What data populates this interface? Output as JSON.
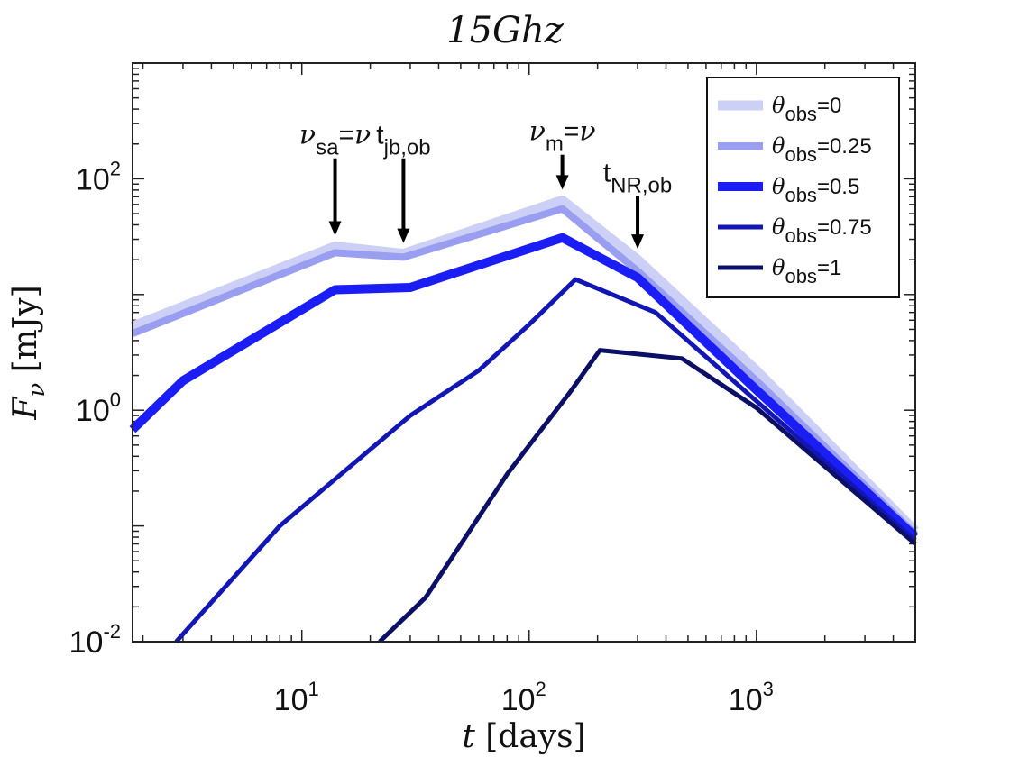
{
  "chart_data": {
    "type": "line",
    "title": "15Ghz",
    "xlabel": "t [days]",
    "ylabel": "F_ν [mJy]",
    "xscale": "log",
    "yscale": "log",
    "xlim": [
      1.8,
      5000
    ],
    "ylim": [
      0.01,
      1000
    ],
    "x_ticks": [
      {
        "value": 10,
        "base": "10",
        "exp": "1"
      },
      {
        "value": 100,
        "base": "10",
        "exp": "2"
      },
      {
        "value": 1000,
        "base": "10",
        "exp": "3"
      }
    ],
    "y_ticks": [
      {
        "value": 0.01,
        "base": "10",
        "exp": "-2"
      },
      {
        "value": 1,
        "base": "10",
        "exp": "0"
      },
      {
        "value": 100,
        "base": "10",
        "exp": "2"
      }
    ],
    "legend": {
      "position": "top-right",
      "symbol": "θ",
      "subscript": "obs",
      "entries": [
        "=0",
        "=0.25",
        "=0.5",
        "=0.75",
        "=1"
      ]
    },
    "series": [
      {
        "name": "θ_obs=0",
        "color": "#cdd0f6",
        "points": [
          [
            1.8,
            5.3
          ],
          [
            14,
            26
          ],
          [
            28,
            22.5
          ],
          [
            140,
            65
          ],
          [
            300,
            20
          ],
          [
            1000,
            2.2
          ],
          [
            5000,
            0.09
          ]
        ]
      },
      {
        "name": "θ_obs=0.25",
        "color": "#9a9ef0",
        "points": [
          [
            1.8,
            4.6
          ],
          [
            14,
            23
          ],
          [
            28,
            21
          ],
          [
            140,
            55
          ],
          [
            300,
            16
          ],
          [
            1000,
            1.8
          ],
          [
            5000,
            0.085
          ]
        ]
      },
      {
        "name": "θ_obs=0.5",
        "color": "#1a1ef5",
        "points": [
          [
            1.8,
            0.68
          ],
          [
            3,
            1.8
          ],
          [
            14,
            11
          ],
          [
            30,
            11.5
          ],
          [
            140,
            31
          ],
          [
            300,
            14
          ],
          [
            1000,
            1.5
          ],
          [
            5000,
            0.08
          ]
        ]
      },
      {
        "name": "θ_obs=0.75",
        "color": "#1216b4",
        "points": [
          [
            2.8,
            0.01
          ],
          [
            8,
            0.1
          ],
          [
            30,
            0.9
          ],
          [
            60,
            2.2
          ],
          [
            100,
            5.5
          ],
          [
            160,
            13.5
          ],
          [
            360,
            7
          ],
          [
            1000,
            1.2
          ],
          [
            5000,
            0.075
          ]
        ]
      },
      {
        "name": "θ_obs=1",
        "color": "#0c0f66",
        "points": [
          [
            22,
            0.01
          ],
          [
            35,
            0.024
          ],
          [
            80,
            0.28
          ],
          [
            150,
            1.4
          ],
          [
            205,
            3.3
          ],
          [
            470,
            2.8
          ],
          [
            1000,
            1.05
          ],
          [
            5000,
            0.07
          ]
        ]
      }
    ],
    "annotations": [
      {
        "name": "nu-sa-annotation",
        "kind": "sym",
        "sym": "ν",
        "sub": "sa",
        "post": "=ν",
        "x": 14,
        "y_text": 200,
        "y_tip": 26
      },
      {
        "name": "t-jb-annotation",
        "kind": "t",
        "sym": "t",
        "sub": "jb,ob",
        "post": "",
        "x": 28,
        "y_text": 200,
        "y_tip": 22.5
      },
      {
        "name": "nu-m-annotation",
        "kind": "sym",
        "sym": "ν",
        "sub": "m",
        "post": "=ν",
        "x": 140,
        "y_text": 215,
        "y_tip": 65
      },
      {
        "name": "t-nr-annotation",
        "kind": "t",
        "sym": "t",
        "sub": "NR,ob",
        "post": "",
        "x": 300,
        "y_text": 95,
        "y_tip": 20
      }
    ]
  }
}
